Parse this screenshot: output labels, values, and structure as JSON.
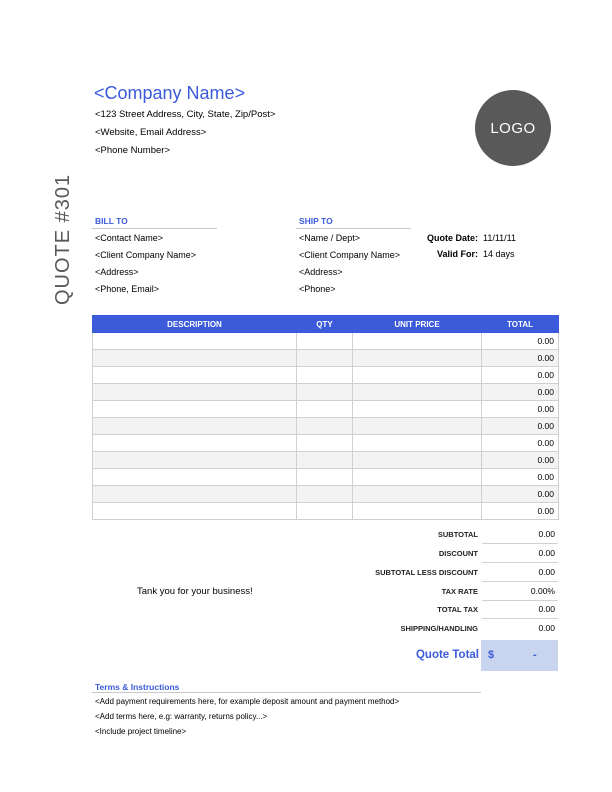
{
  "company": {
    "name": "<Company Name>",
    "address": "<123 Street Address, City, State, Zip/Post>",
    "web_email": "<Website, Email Address>",
    "phone": "<Phone Number>",
    "logo_text": "LOGO"
  },
  "quote_title": "QUOTE #301",
  "bill_to": {
    "heading": "BILL TO",
    "lines": [
      "<Contact Name>",
      "<Client Company Name>",
      "<Address>",
      "<Phone, Email>"
    ]
  },
  "ship_to": {
    "heading": "SHIP TO",
    "lines": [
      "<Name / Dept>",
      "<Client Company Name>",
      "<Address>",
      "<Phone>"
    ]
  },
  "quote_meta": {
    "date_label": "Quote Date:",
    "date_value": "11/11/11",
    "valid_label": "Valid For:",
    "valid_value": "14 days"
  },
  "table": {
    "headers": [
      "DESCRIPTION",
      "QTY",
      "UNIT PRICE",
      "TOTAL"
    ],
    "rows": [
      {
        "description": "",
        "qty": "",
        "unit_price": "",
        "total": "0.00"
      },
      {
        "description": "",
        "qty": "",
        "unit_price": "",
        "total": "0.00"
      },
      {
        "description": "",
        "qty": "",
        "unit_price": "",
        "total": "0.00"
      },
      {
        "description": "",
        "qty": "",
        "unit_price": "",
        "total": "0.00"
      },
      {
        "description": "",
        "qty": "",
        "unit_price": "",
        "total": "0.00"
      },
      {
        "description": "",
        "qty": "",
        "unit_price": "",
        "total": "0.00"
      },
      {
        "description": "",
        "qty": "",
        "unit_price": "",
        "total": "0.00"
      },
      {
        "description": "",
        "qty": "",
        "unit_price": "",
        "total": "0.00"
      },
      {
        "description": "",
        "qty": "",
        "unit_price": "",
        "total": "0.00"
      },
      {
        "description": "",
        "qty": "",
        "unit_price": "",
        "total": "0.00"
      },
      {
        "description": "",
        "qty": "",
        "unit_price": "",
        "total": "0.00"
      }
    ]
  },
  "summary": [
    {
      "label": "SUBTOTAL",
      "value": "0.00"
    },
    {
      "label": "DISCOUNT",
      "value": "0.00"
    },
    {
      "label": "SUBTOTAL LESS DISCOUNT",
      "value": "0.00"
    },
    {
      "label": "TAX RATE",
      "value": "0.00%"
    },
    {
      "label": "TOTAL TAX",
      "value": "0.00"
    },
    {
      "label": "SHIPPING/HANDLING",
      "value": "0.00"
    }
  ],
  "thanks": "Tank you for your business!",
  "quote_total": {
    "label": "Quote Total",
    "currency": "$",
    "value": "-"
  },
  "terms": {
    "heading": "Terms & Instructions",
    "lines": [
      "<Add payment requirements here, for example deposit amount and payment method>",
      "<Add terms here, e.g: warranty, returns policy...>",
      "<Include project timeline>"
    ]
  },
  "colors": {
    "accent": "#3b5bdb",
    "logo_bg": "#595959",
    "total_box": "#c9d5ee"
  }
}
